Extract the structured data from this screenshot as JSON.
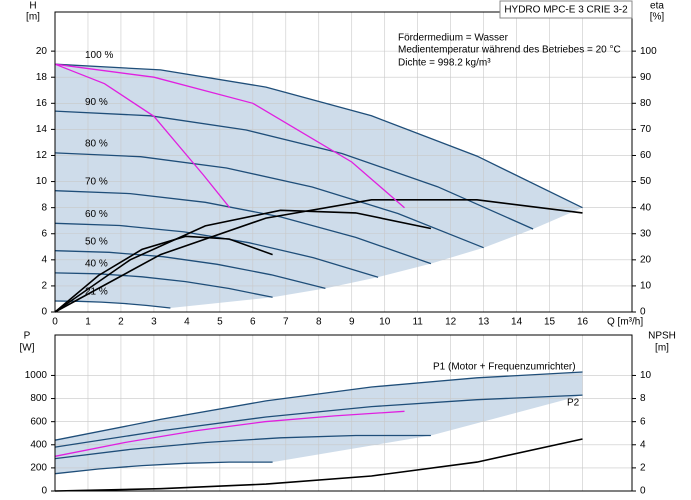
{
  "chart_data": [
    {
      "type": "line",
      "title": "HYDRO MPC-E 3 CRIE 3-2",
      "annotations": [
        "Fördermedium = Wasser",
        "Medientemperatur während des Betriebes = 20 °C",
        "Dichte = 998.2 kg/m³"
      ],
      "ylabel": "H",
      "yunit": "[m]",
      "y2label": "eta",
      "y2unit": "[%]",
      "xlabel": "Q [m³/h]",
      "xlim": [
        0,
        17.5
      ],
      "xticks": [
        0,
        1,
        2,
        3,
        4,
        5,
        6,
        7,
        8,
        9,
        10,
        11,
        12,
        13,
        14,
        15,
        16
      ],
      "ylim": [
        0,
        23
      ],
      "yticks": [
        0,
        2,
        4,
        6,
        8,
        10,
        12,
        14,
        16,
        18,
        20
      ],
      "y2lim": [
        0,
        115
      ],
      "y2ticks": [
        0,
        10,
        20,
        30,
        40,
        50,
        60,
        70,
        80,
        90,
        100
      ],
      "grid": true,
      "area_color": "#c5d6e6",
      "series": [
        {
          "name": "100 %",
          "color": "#1f4e79",
          "x": [
            0,
            3.2,
            6.4,
            9.6,
            12.8,
            16
          ],
          "values": [
            19,
            18.56,
            17.24,
            15.04,
            11.95,
            8.0
          ]
        },
        {
          "name": "90 %",
          "color": "#1f4e79",
          "x": [
            0,
            2.9,
            5.8,
            8.7,
            11.6,
            14.5
          ],
          "values": [
            15.4,
            15.04,
            13.95,
            12.15,
            9.61,
            6.36
          ]
        },
        {
          "name": "80 %",
          "color": "#1f4e79",
          "x": [
            0,
            2.6,
            5.2,
            7.8,
            10.4,
            13
          ],
          "values": [
            12.2,
            11.91,
            11.04,
            9.58,
            7.55,
            4.93
          ]
        },
        {
          "name": "70 %",
          "color": "#1f4e79",
          "x": [
            0,
            2.28,
            4.56,
            6.84,
            9.12,
            11.4
          ],
          "values": [
            9.3,
            9.08,
            8.41,
            7.29,
            5.72,
            3.71
          ]
        },
        {
          "name": "60 %",
          "color": "#1f4e79",
          "x": [
            0,
            1.96,
            3.92,
            5.88,
            7.84,
            9.8
          ],
          "values": [
            6.8,
            6.63,
            6.14,
            5.31,
            4.16,
            2.67
          ]
        },
        {
          "name": "50 %",
          "color": "#1f4e79",
          "x": [
            0,
            1.64,
            3.28,
            4.92,
            6.56,
            8.2
          ],
          "values": [
            4.7,
            4.58,
            4.24,
            3.66,
            2.85,
            1.81
          ]
        },
        {
          "name": "40 %",
          "color": "#1f4e79",
          "x": [
            0,
            1.32,
            2.64,
            3.96,
            5.28,
            6.6
          ],
          "values": [
            3.0,
            2.93,
            2.7,
            2.33,
            1.8,
            1.13
          ]
        },
        {
          "name": "21 %",
          "color": "#1f4e79",
          "x": [
            0,
            0.7,
            1.4,
            2.1,
            2.8,
            3.5
          ],
          "values": [
            0.84,
            0.82,
            0.76,
            0.65,
            0.5,
            0.31
          ]
        },
        {
          "color": "#000000",
          "axis": "y2",
          "x": [
            0,
            3.2,
            6.4,
            9.6,
            12.8,
            16
          ],
          "values": [
            0,
            22,
            36,
            43,
            43,
            38
          ]
        },
        {
          "color": "#000000",
          "axis": "y2",
          "x": [
            0,
            2.28,
            4.56,
            6.84,
            9.12,
            11.4
          ],
          "values": [
            0,
            20,
            33,
            39,
            38,
            32
          ]
        },
        {
          "color": "#000000",
          "axis": "y2",
          "x": [
            0,
            1.32,
            2.64,
            3.96,
            5.28,
            6.6
          ],
          "values": [
            0,
            14,
            24,
            29,
            28,
            22
          ]
        },
        {
          "color": "#e020e0",
          "x": [
            0,
            1.5,
            3,
            4.5,
            5.3
          ],
          "values": [
            19,
            17.5,
            15,
            10.5,
            8
          ]
        },
        {
          "color": "#e020e0",
          "x": [
            0,
            3,
            6,
            9,
            10.6
          ],
          "values": [
            19,
            18,
            16,
            11.5,
            8
          ]
        }
      ]
    },
    {
      "type": "line",
      "annotations": [
        "P1 (Motor + Frequenzumrichter)",
        "P2"
      ],
      "ylabel": "P",
      "yunit": "[W]",
      "y2label": "NPSH",
      "y2unit": "[m]",
      "xlim": [
        0,
        17.5
      ],
      "xticks": [
        0,
        1,
        2,
        3,
        4,
        5,
        6,
        7,
        8,
        9,
        10,
        11,
        12,
        13,
        14,
        15,
        16
      ],
      "ylim": [
        0,
        1350
      ],
      "yticks": [
        0,
        200,
        400,
        600,
        800,
        1000
      ],
      "y2lim": [
        0,
        13.5
      ],
      "y2ticks": [
        0,
        2,
        4,
        6,
        8,
        10
      ],
      "grid": true,
      "area_color": "#c5d6e6",
      "series": [
        {
          "color": "#1f4e79",
          "x": [
            0,
            3.2,
            6.4,
            9.6,
            12.8,
            16
          ],
          "values": [
            440,
            620,
            780,
            900,
            980,
            1030
          ]
        },
        {
          "color": "#1f4e79",
          "x": [
            0,
            3.2,
            6.4,
            9.6,
            12.8,
            16
          ],
          "values": [
            380,
            520,
            640,
            730,
            790,
            830
          ]
        },
        {
          "color": "#1f4e79",
          "x": [
            0,
            2.28,
            4.56,
            6.84,
            9.12,
            11.4
          ],
          "values": [
            280,
            360,
            420,
            460,
            480,
            480
          ]
        },
        {
          "color": "#1f4e79",
          "x": [
            0,
            1.32,
            2.64,
            3.96,
            5.28,
            6.6
          ],
          "values": [
            150,
            190,
            220,
            240,
            250,
            250
          ]
        },
        {
          "color": "#e020e0",
          "x": [
            0,
            2.12,
            4.24,
            6.36,
            8.48,
            10.6
          ],
          "values": [
            300,
            420,
            520,
            600,
            650,
            690
          ]
        },
        {
          "color": "#000000",
          "axis": "y2",
          "x": [
            0,
            3.2,
            6.4,
            9.6,
            12.8,
            16
          ],
          "values": [
            0,
            0.2,
            0.6,
            1.3,
            2.5,
            4.5
          ]
        }
      ]
    }
  ]
}
